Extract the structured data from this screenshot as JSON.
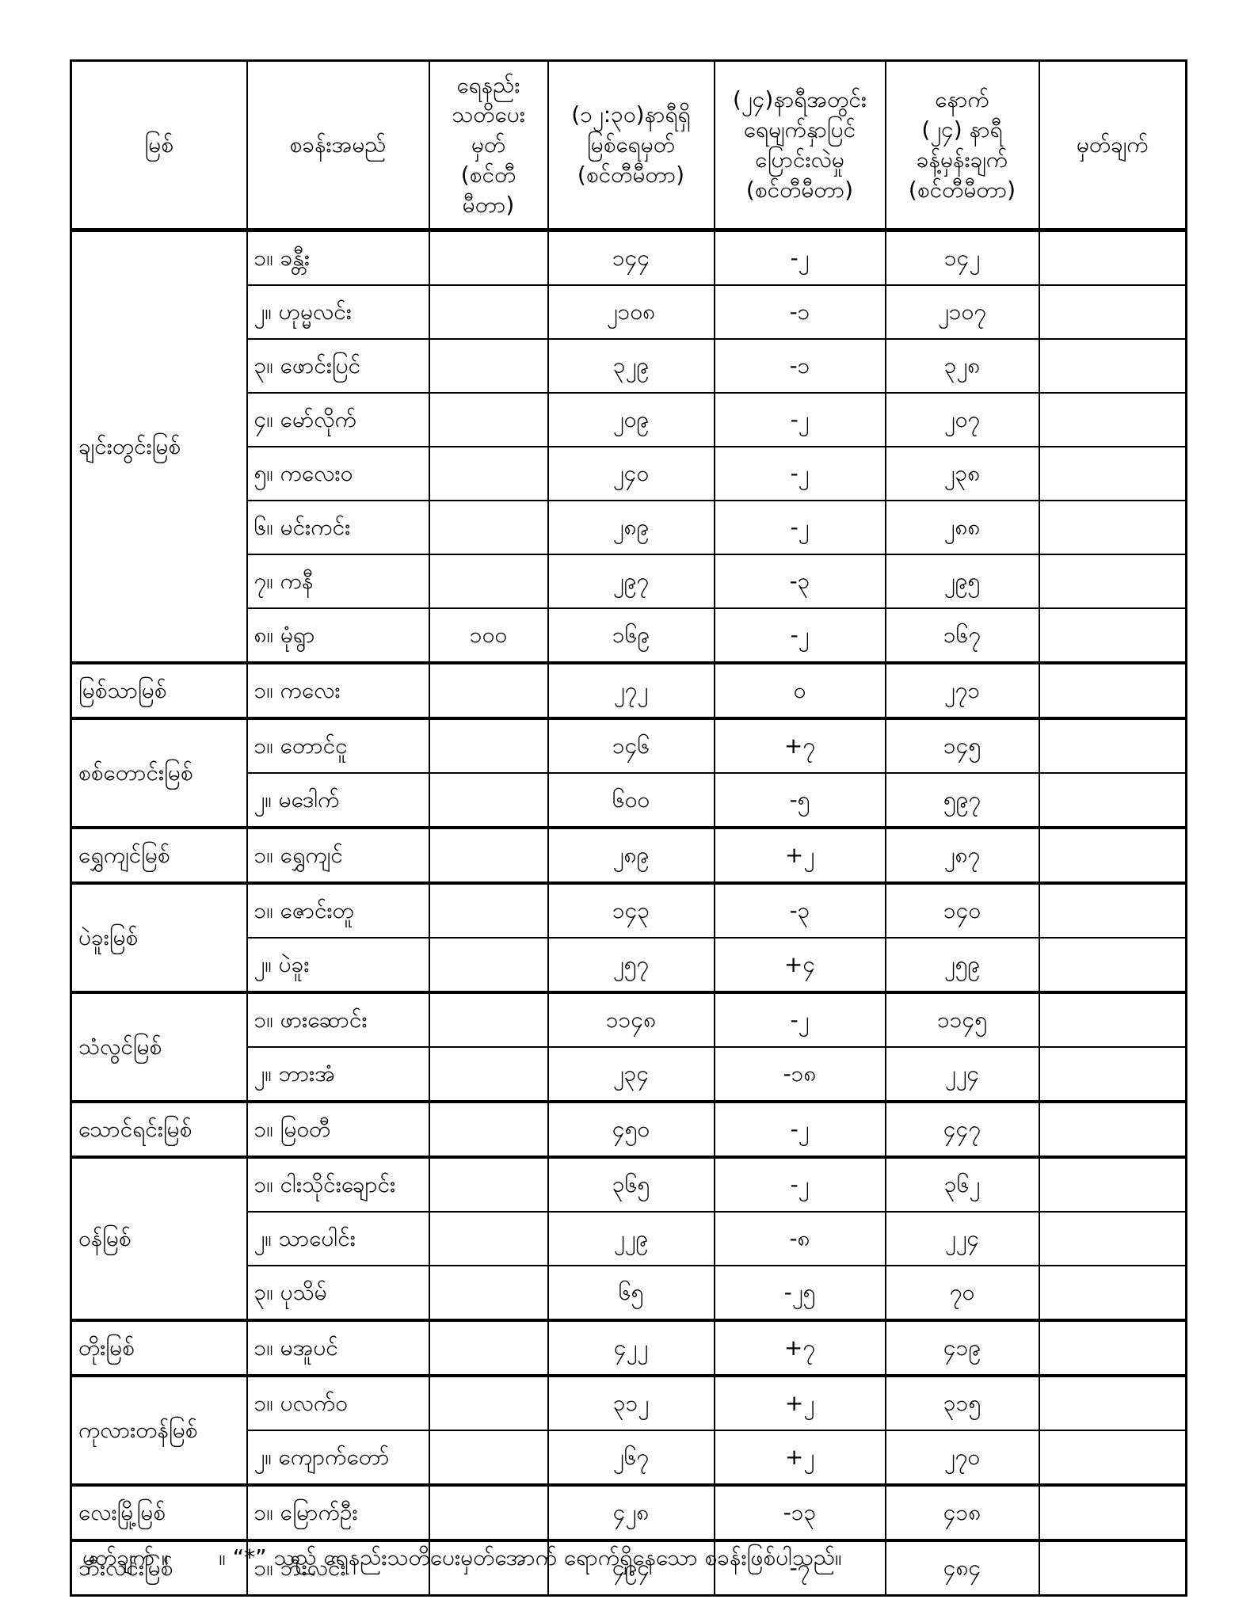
{
  "table": {
    "headers": {
      "river": "မြစ်",
      "station": "စခန်းအမည်",
      "warning": "ရေနည်း\nသတိပေးမှတ်\n(စင်တီမီတာ)",
      "level": "(၁၂:၃၀)နာရီရှိ\nမြစ်ရေမှတ်\n(စင်တီမီတာ)",
      "change": "(၂၄)နာရီအတွင်း\nရေမျက်နှာပြင်\nပြောင်းလဲမှု\n(စင်တီမီတာ)",
      "forecast": "နောက်\n(၂၄) နာရီ\nခန့်မှန်းချက်\n(စင်တီမီတာ)",
      "remark": "မှတ်ချက်"
    },
    "groups": [
      {
        "river": "ချင်းတွင်းမြစ်",
        "stations": [
          {
            "name": "၁။ ခန္တီး",
            "warning": "",
            "level": "၁၄၄",
            "change": "-၂",
            "forecast": "၁၄၂",
            "remark": ""
          },
          {
            "name": "၂။ ဟုမ္မလင်း",
            "warning": "",
            "level": "၂၁၀၈",
            "change": "-၁",
            "forecast": "၂၁၀၇",
            "remark": ""
          },
          {
            "name": "၃။ ဖောင်းပြင်",
            "warning": "",
            "level": "၃၂၉",
            "change": "-၁",
            "forecast": "၃၂၈",
            "remark": ""
          },
          {
            "name": "၄။ မော်လိုက်",
            "warning": "",
            "level": "၂၀၉",
            "change": "-၂",
            "forecast": "၂၀၇",
            "remark": ""
          },
          {
            "name": "၅။ ကလေးဝ",
            "warning": "",
            "level": "၂၄၀",
            "change": "-၂",
            "forecast": "၂၃၈",
            "remark": ""
          },
          {
            "name": "၆။ မင်းကင်း",
            "warning": "",
            "level": "၂၈၉",
            "change": "-၂",
            "forecast": "၂၈၈",
            "remark": ""
          },
          {
            "name": "၇။ ကနီ",
            "warning": "",
            "level": "၂၉၇",
            "change": "-၃",
            "forecast": "၂၉၅",
            "remark": ""
          },
          {
            "name": "၈။ မုံရွာ",
            "warning": "၁၀၀",
            "level": "၁၆၉",
            "change": "-၂",
            "forecast": "၁၆၇",
            "remark": ""
          }
        ]
      },
      {
        "river": "မြစ်သာမြစ်",
        "stations": [
          {
            "name": "၁။ ကလေး",
            "warning": "",
            "level": "၂၇၂",
            "change": "၀",
            "forecast": "၂၇၁",
            "remark": ""
          }
        ]
      },
      {
        "river": "စစ်တောင်းမြစ်",
        "stations": [
          {
            "name": "၁။ တောင်ငူ",
            "warning": "",
            "level": "၁၄၆",
            "change": "+၇",
            "forecast": "၁၄၅",
            "remark": ""
          },
          {
            "name": "၂။ မဒေါက်",
            "warning": "",
            "level": "၆၀၀",
            "change": "-၅",
            "forecast": "၅၉၇",
            "remark": ""
          }
        ]
      },
      {
        "river": "ရွှေကျင်မြစ်",
        "stations": [
          {
            "name": "၁။ ရွှေကျင်",
            "warning": "",
            "level": "၂၈၉",
            "change": "+၂",
            "forecast": "၂၈၇",
            "remark": ""
          }
        ]
      },
      {
        "river": "ပဲခူးမြစ်",
        "stations": [
          {
            "name": "၁။ ဇောင်းတူ",
            "warning": "",
            "level": "၁၄၃",
            "change": "-၃",
            "forecast": "၁၄၀",
            "remark": ""
          },
          {
            "name": "၂။ ပဲခူး",
            "warning": "",
            "level": "၂၅၇",
            "change": "+၄",
            "forecast": "၂၅၉",
            "remark": ""
          }
        ]
      },
      {
        "river": "သံလွင်မြစ်",
        "stations": [
          {
            "name": "၁။ ဖားဆောင်း",
            "warning": "",
            "level": "၁၁၄၈",
            "change": "-၂",
            "forecast": "၁၁၄၅",
            "remark": ""
          },
          {
            "name": "၂။ ဘားအံ",
            "warning": "",
            "level": "၂၃၄",
            "change": "-၁၈",
            "forecast": "၂၂၄",
            "remark": ""
          }
        ]
      },
      {
        "river": "သောင်ရင်းမြစ်",
        "stations": [
          {
            "name": "၁။ မြဝတီ",
            "warning": "",
            "level": "၄၅၀",
            "change": "-၂",
            "forecast": "၄၄၇",
            "remark": ""
          }
        ]
      },
      {
        "river": "ဝန်မြစ်",
        "stations": [
          {
            "name": "၁။ ငါးသိုင်းချောင်း",
            "warning": "",
            "level": "၃၆၅",
            "change": "-၂",
            "forecast": "၃၆၂",
            "remark": ""
          },
          {
            "name": "၂။ သာပေါင်း",
            "warning": "",
            "level": "၂၂၉",
            "change": "-၈",
            "forecast": "၂၂၄",
            "remark": ""
          },
          {
            "name": "၃။ ပုသိမ်",
            "warning": "",
            "level": "၆၅",
            "change": "-၂၅",
            "forecast": "၇၀",
            "remark": ""
          }
        ]
      },
      {
        "river": "တိုးမြစ်",
        "stations": [
          {
            "name": "၁။ မအူပင်",
            "warning": "",
            "level": "၄၂၂",
            "change": "+၇",
            "forecast": "၄၁၉",
            "remark": ""
          }
        ]
      },
      {
        "river": "ကုလားတန်မြစ်",
        "stations": [
          {
            "name": "၁။ ပလက်ဝ",
            "warning": "",
            "level": "၃၁၂",
            "change": "+၂",
            "forecast": "၃၁၅",
            "remark": ""
          },
          {
            "name": "၂။ ကျောက်တော်",
            "warning": "",
            "level": "၂၆၇",
            "change": "+၂",
            "forecast": "၂၇၀",
            "remark": ""
          }
        ]
      },
      {
        "river": "လေးမြို့မြစ်",
        "stations": [
          {
            "name": "၁။ မြောက်ဦး",
            "warning": "",
            "level": "၄၂၈",
            "change": "-၁၃",
            "forecast": "၄၁၈",
            "remark": ""
          }
        ]
      },
      {
        "river": "ဘီးလင်းမြစ်",
        "stations": [
          {
            "name": "၁။ ဘီးလင်း",
            "warning": "",
            "level": "၄၉၄",
            "change": "-၇",
            "forecast": "၄၈၄",
            "remark": ""
          }
        ]
      }
    ]
  },
  "footnote": {
    "label": "မှတ်ချက် ။",
    "text": "။ “*” သည် ရေနည်းသတိပေးမှတ်အောက် ရောက်ရှိနေသော စခန်းဖြစ်ပါသည်။"
  }
}
